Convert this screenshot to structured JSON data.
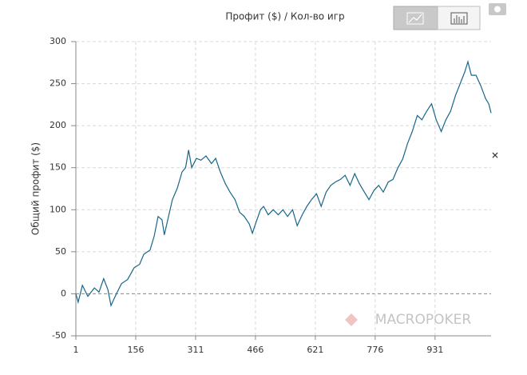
{
  "chart_data": {
    "type": "line",
    "title": "Профит ($) / Кол-во игр",
    "y_label": "Общий профит ($)",
    "color": "#17668a",
    "x": [
      1,
      7,
      18,
      32,
      49,
      61,
      73,
      84,
      92,
      104,
      119,
      135,
      152,
      166,
      177,
      193,
      204,
      214,
      224,
      230,
      239,
      251,
      264,
      276,
      285,
      293,
      301,
      313,
      325,
      338,
      352,
      363,
      375,
      388,
      400,
      413,
      425,
      437,
      450,
      458,
      466,
      479,
      487,
      499,
      512,
      525,
      537,
      549,
      562,
      574,
      587,
      599,
      611,
      624,
      636,
      649,
      661,
      673,
      686,
      698,
      711,
      723,
      735,
      748,
      760,
      773,
      785,
      797,
      810,
      822,
      835,
      847,
      860,
      872,
      885,
      897,
      909,
      922,
      934,
      947,
      959,
      971,
      984,
      996,
      1008,
      1016,
      1025,
      1037,
      1049,
      1062,
      1070,
      1076
    ],
    "values": [
      0,
      -10,
      10,
      -3,
      7,
      2,
      18,
      5,
      -14,
      -2,
      12,
      17,
      31,
      35,
      47,
      52,
      69,
      92,
      88,
      70,
      88,
      112,
      126,
      145,
      150,
      171,
      150,
      161,
      159,
      164,
      155,
      161,
      145,
      131,
      121,
      112,
      97,
      92,
      83,
      72,
      83,
      100,
      104,
      94,
      100,
      94,
      100,
      92,
      100,
      81,
      94,
      104,
      112,
      119,
      104,
      121,
      129,
      133,
      136,
      141,
      129,
      143,
      131,
      121,
      112,
      123,
      129,
      121,
      133,
      136,
      150,
      160,
      179,
      193,
      212,
      207,
      217,
      226,
      207,
      193,
      207,
      217,
      236,
      250,
      264,
      276,
      260,
      260,
      248,
      232,
      226,
      215
    ],
    "xlim": [
      1,
      1076
    ],
    "ylim": [
      -50,
      300
    ],
    "xticks": [
      1,
      156,
      311,
      466,
      621,
      776,
      931
    ],
    "yticks": [
      -50,
      0,
      50,
      100,
      150,
      200,
      250,
      300
    ],
    "grid": true
  },
  "ui": {
    "watermark": "MACROPOKER",
    "close": "✕"
  }
}
